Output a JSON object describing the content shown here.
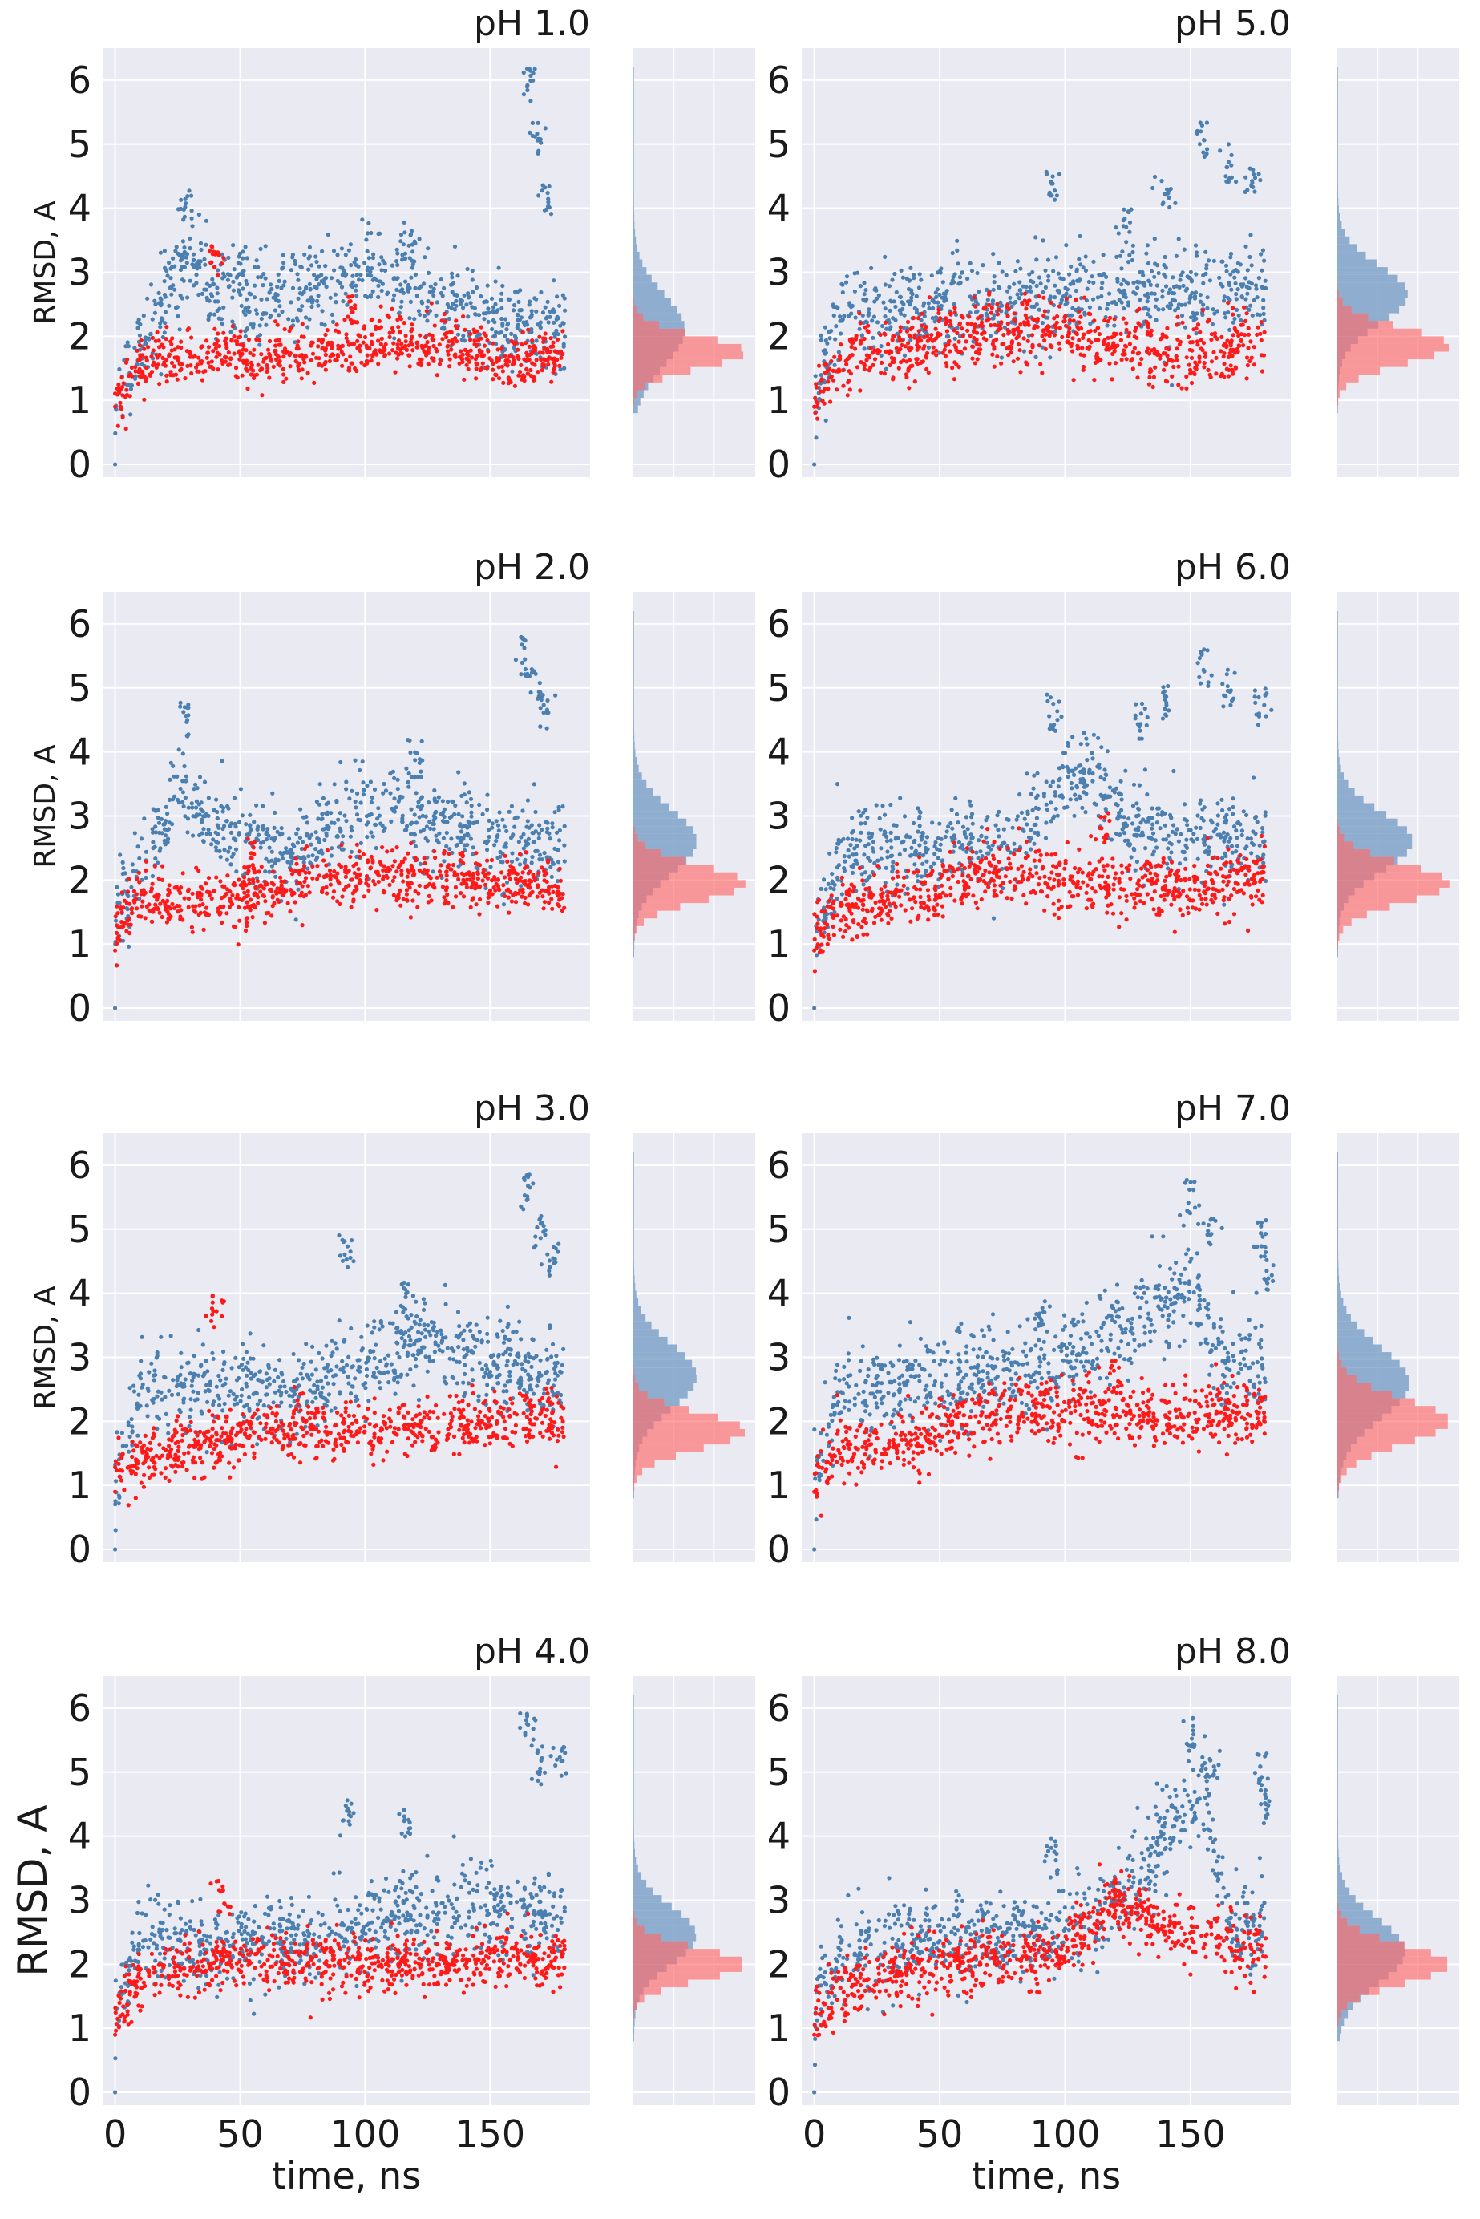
{
  "chart_data": {
    "type": "scatter",
    "figure_kind": "scatter with marginal histograms",
    "xlabel": "time, ns",
    "ylabel": "RMSD, A",
    "xticks": [
      0,
      50,
      100,
      150
    ],
    "yticks": [
      0,
      1,
      2,
      3,
      4,
      5,
      6
    ],
    "xlim": [
      -5,
      190
    ],
    "ylim": [
      -0.2,
      6.5
    ],
    "series_colors": {
      "blue": "#4a7fb0",
      "red": "#ff1a1a"
    },
    "hist_colors": {
      "blue": "#7fa3c9",
      "red": "#ff6a6a",
      "overlap": "#8b5f85"
    },
    "panels": [
      {
        "title": "pH 1.0",
        "blue": {
          "base": [
            [
              0,
              0.9
            ],
            [
              10,
              1.9
            ],
            [
              30,
              3.2
            ],
            [
              40,
              2.7
            ],
            [
              55,
              2.5
            ],
            [
              75,
              2.8
            ],
            [
              100,
              3.0
            ],
            [
              125,
              2.7
            ],
            [
              150,
              2.2
            ],
            [
              165,
              2.2
            ],
            [
              180,
              2.1
            ]
          ],
          "spikes": [
            [
              28,
              4.3
            ],
            [
              50,
              3.4
            ],
            [
              118,
              3.8
            ],
            [
              165,
              6.2
            ],
            [
              168,
              5.4
            ],
            [
              172,
              4.5
            ]
          ],
          "noise": 0.35
        },
        "red": {
          "base": [
            [
              0,
              0.9
            ],
            [
              10,
              1.6
            ],
            [
              40,
              1.7
            ],
            [
              70,
              1.7
            ],
            [
              100,
              1.9
            ],
            [
              130,
              1.9
            ],
            [
              160,
              1.6
            ],
            [
              180,
              1.7
            ]
          ],
          "spikes": [
            [
              40,
              3.5
            ],
            [
              95,
              2.8
            ]
          ],
          "noise": 0.22
        },
        "hist_blue": {
          "mean": 2.1,
          "sd": 0.55
        },
        "hist_red": {
          "mean": 1.75,
          "sd": 0.25
        }
      },
      {
        "title": "pH 5.0",
        "blue": {
          "base": [
            [
              0,
              1.0
            ],
            [
              10,
              2.3
            ],
            [
              40,
              2.5
            ],
            [
              80,
              2.6
            ],
            [
              100,
              2.7
            ],
            [
              120,
              2.9
            ],
            [
              140,
              2.6
            ],
            [
              160,
              2.8
            ],
            [
              180,
              2.7
            ]
          ],
          "spikes": [
            [
              95,
              4.6
            ],
            [
              125,
              4.0
            ],
            [
              140,
              4.5
            ],
            [
              155,
              5.4
            ],
            [
              165,
              5.0
            ],
            [
              175,
              4.8
            ]
          ],
          "noise": 0.35
        },
        "red": {
          "base": [
            [
              0,
              1.0
            ],
            [
              10,
              1.6
            ],
            [
              40,
              1.8
            ],
            [
              70,
              2.1
            ],
            [
              100,
              2.0
            ],
            [
              130,
              1.8
            ],
            [
              160,
              1.7
            ],
            [
              180,
              2.0
            ]
          ],
          "spikes": [
            [
              85,
              2.6
            ]
          ],
          "noise": 0.25
        },
        "hist_blue": {
          "mean": 2.65,
          "sd": 0.45
        },
        "hist_red": {
          "mean": 1.85,
          "sd": 0.28
        }
      },
      {
        "title": "pH 2.0",
        "blue": {
          "base": [
            [
              0,
              1.2
            ],
            [
              10,
              2.2
            ],
            [
              25,
              3.3
            ],
            [
              45,
              2.7
            ],
            [
              70,
              2.4
            ],
            [
              95,
              3.0
            ],
            [
              120,
              3.1
            ],
            [
              150,
              2.6
            ],
            [
              160,
              2.6
            ],
            [
              180,
              2.5
            ]
          ],
          "spikes": [
            [
              28,
              4.8
            ],
            [
              120,
              4.2
            ],
            [
              163,
              5.8
            ],
            [
              168,
              5.3
            ],
            [
              172,
              4.9
            ]
          ],
          "noise": 0.35
        },
        "red": {
          "base": [
            [
              0,
              1.2
            ],
            [
              10,
              1.7
            ],
            [
              40,
              1.6
            ],
            [
              70,
              1.9
            ],
            [
              100,
              2.1
            ],
            [
              130,
              2.0
            ],
            [
              160,
              2.0
            ],
            [
              180,
              1.7
            ]
          ],
          "spikes": [
            [
              55,
              2.7
            ]
          ],
          "noise": 0.22
        },
        "hist_blue": {
          "mean": 2.6,
          "sd": 0.5
        },
        "hist_red": {
          "mean": 1.95,
          "sd": 0.28
        }
      },
      {
        "title": "pH 6.0",
        "blue": {
          "base": [
            [
              0,
              1.1
            ],
            [
              10,
              2.4
            ],
            [
              50,
              2.5
            ],
            [
              80,
              2.6
            ],
            [
              95,
              3.4
            ],
            [
              110,
              3.7
            ],
            [
              125,
              2.8
            ],
            [
              150,
              2.6
            ],
            [
              180,
              2.7
            ]
          ],
          "spikes": [
            [
              95,
              4.9
            ],
            [
              130,
              4.8
            ],
            [
              140,
              5.1
            ],
            [
              155,
              5.6
            ],
            [
              165,
              5.3
            ],
            [
              178,
              5.0
            ]
          ],
          "noise": 0.35
        },
        "red": {
          "base": [
            [
              0,
              1.1
            ],
            [
              10,
              1.6
            ],
            [
              40,
              1.7
            ],
            [
              70,
              2.1
            ],
            [
              100,
              2.0
            ],
            [
              130,
              1.9
            ],
            [
              160,
              1.9
            ],
            [
              180,
              2.1
            ]
          ],
          "spikes": [
            [
              115,
              3.1
            ]
          ],
          "noise": 0.25
        },
        "hist_blue": {
          "mean": 2.6,
          "sd": 0.45
        },
        "hist_red": {
          "mean": 1.95,
          "sd": 0.3
        }
      },
      {
        "title": "pH 3.0",
        "blue": {
          "base": [
            [
              0,
              1.2
            ],
            [
              10,
              2.4
            ],
            [
              40,
              2.6
            ],
            [
              70,
              2.5
            ],
            [
              100,
              2.9
            ],
            [
              120,
              3.3
            ],
            [
              150,
              2.9
            ],
            [
              180,
              2.6
            ]
          ],
          "spikes": [
            [
              93,
              5.0
            ],
            [
              117,
              4.2
            ],
            [
              165,
              5.9
            ],
            [
              170,
              5.3
            ],
            [
              175,
              4.8
            ]
          ],
          "noise": 0.35
        },
        "red": {
          "base": [
            [
              0,
              1.1
            ],
            [
              10,
              1.4
            ],
            [
              40,
              1.7
            ],
            [
              70,
              1.9
            ],
            [
              100,
              1.8
            ],
            [
              130,
              1.9
            ],
            [
              160,
              2.0
            ],
            [
              180,
              2.0
            ]
          ],
          "spikes": [
            [
              40,
              4.0
            ]
          ],
          "noise": 0.22
        },
        "hist_blue": {
          "mean": 2.7,
          "sd": 0.5
        },
        "hist_red": {
          "mean": 1.85,
          "sd": 0.28
        }
      },
      {
        "title": "pH 7.0",
        "blue": {
          "base": [
            [
              0,
              1.1
            ],
            [
              10,
              2.5
            ],
            [
              50,
              2.6
            ],
            [
              90,
              2.8
            ],
            [
              110,
              3.2
            ],
            [
              130,
              3.6
            ],
            [
              150,
              4.2
            ],
            [
              160,
              3.0
            ],
            [
              180,
              2.8
            ]
          ],
          "spikes": [
            [
              90,
              4.0
            ],
            [
              150,
              5.8
            ],
            [
              158,
              5.2
            ],
            [
              178,
              5.2
            ],
            [
              180,
              4.6
            ]
          ],
          "noise": 0.35
        },
        "red": {
          "base": [
            [
              0,
              1.1
            ],
            [
              10,
              1.5
            ],
            [
              40,
              1.7
            ],
            [
              70,
              2.1
            ],
            [
              100,
              2.2
            ],
            [
              130,
              2.1
            ],
            [
              160,
              2.1
            ],
            [
              180,
              2.1
            ]
          ],
          "spikes": [
            [
              120,
              3.0
            ]
          ],
          "noise": 0.25
        },
        "hist_blue": {
          "mean": 2.6,
          "sd": 0.55
        },
        "hist_red": {
          "mean": 2.0,
          "sd": 0.35
        }
      },
      {
        "title": "pH 4.0",
        "blue": {
          "base": [
            [
              0,
              1.3
            ],
            [
              10,
              2.3
            ],
            [
              40,
              2.3
            ],
            [
              70,
              2.4
            ],
            [
              100,
              2.6
            ],
            [
              130,
              2.8
            ],
            [
              150,
              2.9
            ],
            [
              180,
              2.7
            ]
          ],
          "spikes": [
            [
              93,
              4.6
            ],
            [
              117,
              4.5
            ],
            [
              165,
              6.0
            ],
            [
              170,
              5.4
            ],
            [
              178,
              5.4
            ]
          ],
          "noise": 0.35
        },
        "red": {
          "base": [
            [
              0,
              1.2
            ],
            [
              10,
              1.8
            ],
            [
              40,
              2.0
            ],
            [
              70,
              2.1
            ],
            [
              100,
              2.0
            ],
            [
              130,
              2.0
            ],
            [
              160,
              2.1
            ],
            [
              180,
              2.0
            ]
          ],
          "spikes": [
            [
              42,
              3.3
            ]
          ],
          "noise": 0.22
        },
        "hist_blue": {
          "mean": 2.45,
          "sd": 0.45
        },
        "hist_red": {
          "mean": 2.0,
          "sd": 0.25
        }
      },
      {
        "title": "pH 8.0",
        "blue": {
          "base": [
            [
              0,
              1.2
            ],
            [
              10,
              2.2
            ],
            [
              50,
              2.4
            ],
            [
              90,
              2.5
            ],
            [
              110,
              2.7
            ],
            [
              130,
              3.4
            ],
            [
              145,
              4.3
            ],
            [
              155,
              4.8
            ],
            [
              165,
              2.6
            ],
            [
              180,
              2.6
            ]
          ],
          "spikes": [
            [
              95,
              4.0
            ],
            [
              150,
              5.9
            ],
            [
              158,
              5.4
            ],
            [
              178,
              5.4
            ],
            [
              180,
              4.8
            ]
          ],
          "noise": 0.35
        },
        "red": {
          "base": [
            [
              0,
              1.1
            ],
            [
              10,
              1.6
            ],
            [
              40,
              1.9
            ],
            [
              70,
              2.1
            ],
            [
              100,
              2.2
            ],
            [
              120,
              3.0
            ],
            [
              140,
              2.6
            ],
            [
              160,
              2.3
            ],
            [
              180,
              2.2
            ]
          ],
          "spikes": [
            [
              120,
              3.3
            ]
          ],
          "noise": 0.25
        },
        "hist_blue": {
          "mean": 2.2,
          "sd": 0.5
        },
        "hist_red": {
          "mean": 2.0,
          "sd": 0.3
        }
      }
    ]
  }
}
